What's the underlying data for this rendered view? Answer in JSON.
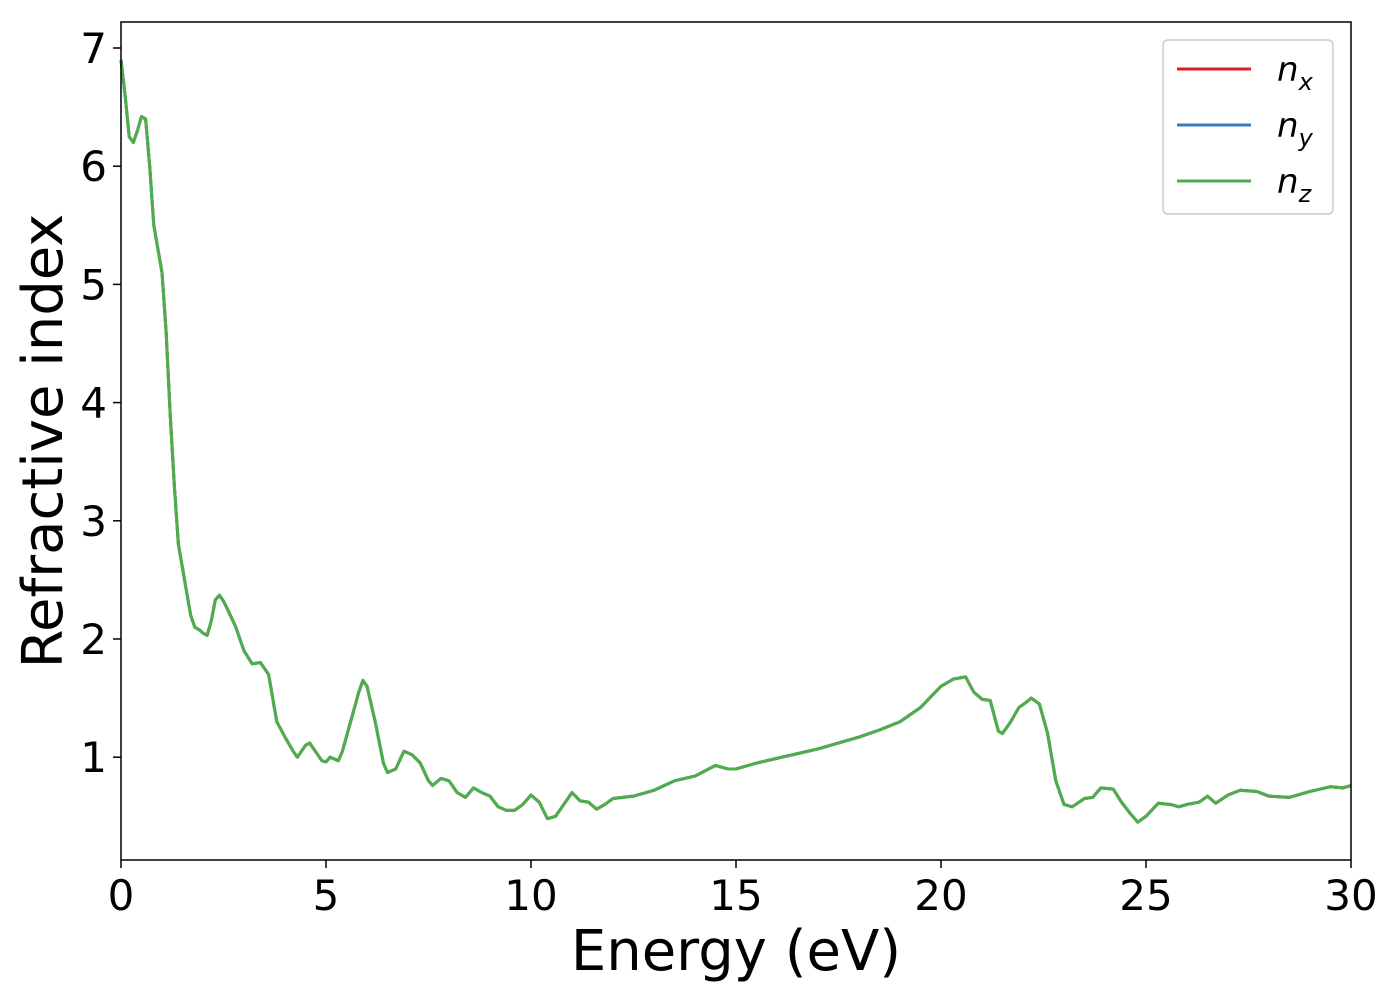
{
  "chart_data": {
    "type": "line",
    "xlabel": "Energy (eV)",
    "ylabel": "Refractive index",
    "xlim": [
      0,
      30
    ],
    "ylim": [
      0.13,
      7.22
    ],
    "xticks": [
      0,
      5,
      10,
      15,
      20,
      25,
      30
    ],
    "yticks": [
      1,
      2,
      3,
      4,
      5,
      6,
      7
    ],
    "grid": false,
    "legend": "upper right",
    "x": [
      0,
      0.1,
      0.2,
      0.3,
      0.4,
      0.5,
      0.6,
      0.7,
      0.8,
      0.9,
      1.0,
      1.1,
      1.2,
      1.3,
      1.4,
      1.5,
      1.6,
      1.7,
      1.8,
      1.9,
      2.0,
      2.1,
      2.2,
      2.3,
      2.4,
      2.5,
      2.6,
      2.8,
      3.0,
      3.2,
      3.4,
      3.6,
      3.8,
      4.0,
      4.2,
      4.3,
      4.5,
      4.6,
      4.8,
      4.9,
      5.0,
      5.1,
      5.3,
      5.4,
      5.6,
      5.8,
      5.9,
      6.0,
      6.2,
      6.4,
      6.5,
      6.7,
      6.9,
      7.1,
      7.3,
      7.5,
      7.6,
      7.8,
      8.0,
      8.2,
      8.4,
      8.6,
      8.8,
      9.0,
      9.2,
      9.4,
      9.6,
      9.8,
      10.0,
      10.2,
      10.4,
      10.6,
      10.8,
      11.0,
      11.2,
      11.4,
      11.6,
      11.8,
      12.0,
      12.5,
      13.0,
      13.5,
      14.0,
      14.5,
      14.8,
      15.0,
      15.5,
      16.0,
      16.5,
      17.0,
      17.5,
      18.0,
      18.5,
      19.0,
      19.5,
      20.0,
      20.3,
      20.6,
      20.8,
      21.0,
      21.2,
      21.4,
      21.5,
      21.7,
      21.9,
      22.1,
      22.2,
      22.4,
      22.6,
      22.8,
      23.0,
      23.2,
      23.5,
      23.7,
      23.9,
      24.2,
      24.4,
      24.6,
      24.8,
      25.0,
      25.3,
      25.6,
      25.8,
      26.0,
      26.3,
      26.5,
      26.7,
      27.0,
      27.3,
      27.7,
      28.0,
      28.5,
      29.0,
      29.5,
      29.8,
      30.0
    ],
    "series": [
      {
        "name": "n_x",
        "color": "#e41a1c",
        "values": [
          6.9,
          6.6,
          6.25,
          6.2,
          6.3,
          6.42,
          6.4,
          6.0,
          5.5,
          5.3,
          5.1,
          4.6,
          3.9,
          3.3,
          2.8,
          2.6,
          2.4,
          2.2,
          2.1,
          2.08,
          2.05,
          2.03,
          2.15,
          2.33,
          2.37,
          2.32,
          2.25,
          2.1,
          1.9,
          1.79,
          1.8,
          1.7,
          1.3,
          1.17,
          1.05,
          1.0,
          1.1,
          1.12,
          1.02,
          0.97,
          0.96,
          1.0,
          0.97,
          1.05,
          1.3,
          1.55,
          1.65,
          1.6,
          1.3,
          0.95,
          0.87,
          0.9,
          1.05,
          1.02,
          0.95,
          0.8,
          0.76,
          0.82,
          0.8,
          0.7,
          0.66,
          0.74,
          0.7,
          0.67,
          0.58,
          0.55,
          0.55,
          0.6,
          0.68,
          0.62,
          0.48,
          0.5,
          0.6,
          0.7,
          0.63,
          0.62,
          0.56,
          0.6,
          0.65,
          0.67,
          0.72,
          0.8,
          0.84,
          0.93,
          0.9,
          0.9,
          0.95,
          0.99,
          1.03,
          1.07,
          1.12,
          1.17,
          1.23,
          1.3,
          1.42,
          1.6,
          1.66,
          1.68,
          1.55,
          1.49,
          1.48,
          1.22,
          1.2,
          1.3,
          1.42,
          1.47,
          1.5,
          1.45,
          1.2,
          0.8,
          0.6,
          0.58,
          0.65,
          0.66,
          0.74,
          0.73,
          0.62,
          0.53,
          0.45,
          0.5,
          0.61,
          0.6,
          0.58,
          0.6,
          0.62,
          0.67,
          0.61,
          0.68,
          0.72,
          0.71,
          0.67,
          0.66,
          0.71,
          0.75,
          0.74,
          0.76
        ]
      },
      {
        "name": "n_y",
        "color": "#377eb8",
        "values": [
          6.9,
          6.6,
          6.25,
          6.2,
          6.3,
          6.42,
          6.4,
          6.0,
          5.5,
          5.3,
          5.1,
          4.6,
          3.9,
          3.3,
          2.8,
          2.6,
          2.4,
          2.2,
          2.1,
          2.08,
          2.05,
          2.03,
          2.15,
          2.33,
          2.37,
          2.32,
          2.25,
          2.1,
          1.9,
          1.79,
          1.8,
          1.7,
          1.3,
          1.17,
          1.05,
          1.0,
          1.1,
          1.12,
          1.02,
          0.97,
          0.96,
          1.0,
          0.97,
          1.05,
          1.3,
          1.55,
          1.65,
          1.6,
          1.3,
          0.95,
          0.87,
          0.9,
          1.05,
          1.02,
          0.95,
          0.8,
          0.76,
          0.82,
          0.8,
          0.7,
          0.66,
          0.74,
          0.7,
          0.67,
          0.58,
          0.55,
          0.55,
          0.6,
          0.68,
          0.62,
          0.48,
          0.5,
          0.6,
          0.7,
          0.63,
          0.62,
          0.56,
          0.6,
          0.65,
          0.67,
          0.72,
          0.8,
          0.84,
          0.93,
          0.9,
          0.9,
          0.95,
          0.99,
          1.03,
          1.07,
          1.12,
          1.17,
          1.23,
          1.3,
          1.42,
          1.6,
          1.66,
          1.68,
          1.55,
          1.49,
          1.48,
          1.22,
          1.2,
          1.3,
          1.42,
          1.47,
          1.5,
          1.45,
          1.2,
          0.8,
          0.6,
          0.58,
          0.65,
          0.66,
          0.74,
          0.73,
          0.62,
          0.53,
          0.45,
          0.5,
          0.61,
          0.6,
          0.58,
          0.6,
          0.62,
          0.67,
          0.61,
          0.68,
          0.72,
          0.71,
          0.67,
          0.66,
          0.71,
          0.75,
          0.74,
          0.76
        ]
      },
      {
        "name": "n_z",
        "color": "#4daf4a",
        "values": [
          6.9,
          6.6,
          6.25,
          6.2,
          6.3,
          6.42,
          6.4,
          6.0,
          5.5,
          5.3,
          5.1,
          4.6,
          3.9,
          3.3,
          2.8,
          2.6,
          2.4,
          2.2,
          2.1,
          2.08,
          2.05,
          2.03,
          2.15,
          2.33,
          2.37,
          2.32,
          2.25,
          2.1,
          1.9,
          1.79,
          1.8,
          1.7,
          1.3,
          1.17,
          1.05,
          1.0,
          1.1,
          1.12,
          1.02,
          0.97,
          0.96,
          1.0,
          0.97,
          1.05,
          1.3,
          1.55,
          1.65,
          1.6,
          1.3,
          0.95,
          0.87,
          0.9,
          1.05,
          1.02,
          0.95,
          0.8,
          0.76,
          0.82,
          0.8,
          0.7,
          0.66,
          0.74,
          0.7,
          0.67,
          0.58,
          0.55,
          0.55,
          0.6,
          0.68,
          0.62,
          0.48,
          0.5,
          0.6,
          0.7,
          0.63,
          0.62,
          0.56,
          0.6,
          0.65,
          0.67,
          0.72,
          0.8,
          0.84,
          0.93,
          0.9,
          0.9,
          0.95,
          0.99,
          1.03,
          1.07,
          1.12,
          1.17,
          1.23,
          1.3,
          1.42,
          1.6,
          1.66,
          1.68,
          1.55,
          1.49,
          1.48,
          1.22,
          1.2,
          1.3,
          1.42,
          1.47,
          1.5,
          1.45,
          1.2,
          0.8,
          0.6,
          0.58,
          0.65,
          0.66,
          0.74,
          0.73,
          0.62,
          0.53,
          0.45,
          0.5,
          0.61,
          0.6,
          0.58,
          0.6,
          0.62,
          0.67,
          0.61,
          0.68,
          0.72,
          0.71,
          0.67,
          0.66,
          0.71,
          0.75,
          0.74,
          0.76
        ]
      }
    ]
  }
}
